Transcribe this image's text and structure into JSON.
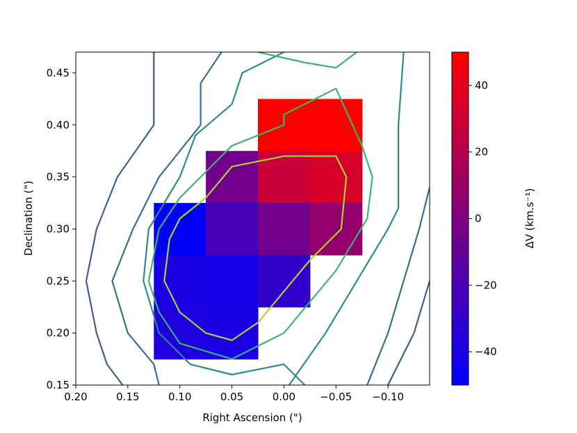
{
  "chart_data": {
    "type": "heatmap",
    "title": "",
    "xlabel": "Right Ascension (\")",
    "ylabel": "Declination (\")",
    "xlim": [
      0.2,
      -0.14
    ],
    "ylim": [
      0.15,
      0.47
    ],
    "x_inverted": true,
    "xticks": [
      0.2,
      0.15,
      0.1,
      0.05,
      0.0,
      -0.05,
      -0.1
    ],
    "xtick_labels": [
      "0.20",
      "0.15",
      "0.10",
      "0.05",
      "0.00",
      "−0.05",
      "−0.10"
    ],
    "yticks": [
      0.15,
      0.2,
      0.25,
      0.3,
      0.35,
      0.4,
      0.45
    ],
    "ytick_labels": [
      "0.15",
      "0.20",
      "0.25",
      "0.30",
      "0.35",
      "0.40",
      "0.45"
    ],
    "grid": false,
    "pixel_size": 0.05,
    "cells": [
      {
        "x": 0.0,
        "y": 0.4,
        "v": 50
      },
      {
        "x": -0.05,
        "y": 0.4,
        "v": 50
      },
      {
        "x": 0.05,
        "y": 0.35,
        "v": -5
      },
      {
        "x": 0.0,
        "y": 0.35,
        "v": 28
      },
      {
        "x": -0.05,
        "y": 0.35,
        "v": 34
      },
      {
        "x": 0.1,
        "y": 0.3,
        "v": -50
      },
      {
        "x": 0.05,
        "y": 0.3,
        "v": -22
      },
      {
        "x": 0.0,
        "y": 0.3,
        "v": -5
      },
      {
        "x": -0.05,
        "y": 0.3,
        "v": 8
      },
      {
        "x": 0.1,
        "y": 0.25,
        "v": -40
      },
      {
        "x": 0.05,
        "y": 0.25,
        "v": -42
      },
      {
        "x": 0.0,
        "y": 0.25,
        "v": -30
      },
      {
        "x": 0.1,
        "y": 0.2,
        "v": -38
      },
      {
        "x": 0.05,
        "y": 0.2,
        "v": -40
      }
    ],
    "contours": [
      {
        "color": "#3b5f8e",
        "points": [
          [
            0.125,
            0.47
          ],
          [
            0.125,
            0.4
          ],
          [
            0.16,
            0.35
          ],
          [
            0.18,
            0.3
          ],
          [
            0.19,
            0.25
          ],
          [
            0.18,
            0.2
          ],
          [
            0.17,
            0.17
          ],
          [
            0.155,
            0.15
          ]
        ]
      },
      {
        "color": "#3b5f8e",
        "points": [
          [
            -0.14,
            0.25
          ],
          [
            -0.125,
            0.2
          ],
          [
            -0.1,
            0.15
          ]
        ]
      },
      {
        "color": "#336f8e",
        "points": [
          [
            0.06,
            0.47
          ],
          [
            0.08,
            0.44
          ],
          [
            0.08,
            0.4
          ],
          [
            0.12,
            0.35
          ],
          [
            0.145,
            0.3
          ],
          [
            0.165,
            0.25
          ],
          [
            0.15,
            0.2
          ],
          [
            0.125,
            0.17
          ],
          [
            0.12,
            0.15
          ]
        ]
      },
      {
        "color": "#336f8e",
        "points": [
          [
            -0.14,
            0.34
          ],
          [
            -0.13,
            0.3
          ],
          [
            -0.1,
            0.2
          ],
          [
            -0.08,
            0.15
          ]
        ]
      },
      {
        "color": "#2a8b8a",
        "points": [
          [
            0.0,
            0.47
          ],
          [
            0.04,
            0.45
          ],
          [
            0.05,
            0.42
          ],
          [
            0.085,
            0.39
          ],
          [
            0.1,
            0.35
          ],
          [
            0.13,
            0.3
          ],
          [
            0.135,
            0.25
          ],
          [
            0.12,
            0.2
          ],
          [
            0.09,
            0.17
          ],
          [
            0.05,
            0.16
          ],
          [
            0.0,
            0.17
          ],
          [
            -0.02,
            0.15
          ]
        ]
      },
      {
        "color": "#2a8b8a",
        "points": [
          [
            -0.115,
            0.47
          ],
          [
            -0.11,
            0.4
          ],
          [
            -0.11,
            0.32
          ],
          [
            -0.1,
            0.3
          ],
          [
            -0.04,
            0.2
          ],
          [
            -0.005,
            0.15
          ]
        ]
      },
      {
        "color": "#3fb26f",
        "points": [
          [
            0.025,
            0.47
          ],
          [
            -0.02,
            0.46
          ],
          [
            -0.05,
            0.455
          ],
          [
            -0.07,
            0.47
          ]
        ]
      },
      {
        "color": "#3fb26f",
        "points": [
          [
            0.0,
            0.4
          ],
          [
            0.025,
            0.39
          ],
          [
            0.05,
            0.38
          ],
          [
            0.1,
            0.33
          ],
          [
            0.12,
            0.3
          ],
          [
            0.13,
            0.25
          ],
          [
            0.12,
            0.22
          ],
          [
            0.1,
            0.19
          ],
          [
            0.05,
            0.175
          ],
          [
            0.0,
            0.2
          ],
          [
            -0.05,
            0.26
          ],
          [
            -0.08,
            0.31
          ],
          [
            -0.085,
            0.35
          ],
          [
            -0.075,
            0.38
          ],
          [
            -0.05,
            0.435
          ],
          [
            0.0,
            0.41
          ],
          [
            0.0,
            0.4
          ]
        ]
      },
      {
        "color": "#a9d33c",
        "points": [
          [
            0.0,
            0.37
          ],
          [
            0.05,
            0.36
          ],
          [
            0.075,
            0.33
          ],
          [
            0.1,
            0.31
          ],
          [
            0.11,
            0.29
          ],
          [
            0.115,
            0.25
          ],
          [
            0.1,
            0.22
          ],
          [
            0.075,
            0.2
          ],
          [
            0.05,
            0.193
          ],
          [
            0.025,
            0.21
          ],
          [
            0.0,
            0.24
          ],
          [
            -0.025,
            0.27
          ],
          [
            -0.055,
            0.3
          ],
          [
            -0.06,
            0.35
          ],
          [
            -0.05,
            0.37
          ],
          [
            0.0,
            0.37
          ]
        ]
      }
    ],
    "colorbar": {
      "label": "ΔV (km.s⁻¹)",
      "vmin": -50,
      "vmax": 50,
      "ticks": [
        40,
        20,
        0,
        -20,
        -40
      ],
      "tick_labels": [
        "40",
        "20",
        "0",
        "−20",
        "−40"
      ],
      "low_color": "#0000ff",
      "high_color": "#ff0000"
    }
  }
}
